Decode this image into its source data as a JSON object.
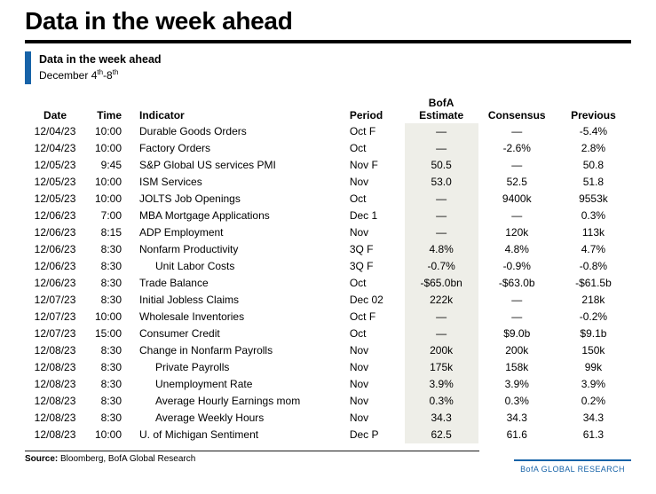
{
  "page": {
    "title": "Data in the week ahead"
  },
  "subheader": {
    "title": "Data in the week ahead",
    "date_prefix": "December 4",
    "date_sup1": "th",
    "date_mid": "-8",
    "date_sup2": "th"
  },
  "table": {
    "headers": {
      "date": "Date",
      "time": "Time",
      "indicator": "Indicator",
      "period": "Period",
      "bofa_line1": "BofA",
      "bofa_line2": "Estimate",
      "consensus": "Consensus",
      "previous": "Previous"
    },
    "rows": [
      {
        "date": "12/04/23",
        "time": "10:00",
        "indicator": "Durable Goods Orders",
        "indent": false,
        "period": "Oct F",
        "bofa": "—",
        "consensus": "—",
        "previous": "-5.4%"
      },
      {
        "date": "12/04/23",
        "time": "10:00",
        "indicator": "Factory Orders",
        "indent": false,
        "period": "Oct",
        "bofa": "—",
        "consensus": "-2.6%",
        "previous": "2.8%"
      },
      {
        "date": "12/05/23",
        "time": "9:45",
        "indicator": "S&P Global US services PMI",
        "indent": false,
        "period": "Nov F",
        "bofa": "50.5",
        "consensus": "—",
        "previous": "50.8"
      },
      {
        "date": "12/05/23",
        "time": "10:00",
        "indicator": "ISM Services",
        "indent": false,
        "period": "Nov",
        "bofa": "53.0",
        "consensus": "52.5",
        "previous": "51.8"
      },
      {
        "date": "12/05/23",
        "time": "10:00",
        "indicator": "JOLTS Job Openings",
        "indent": false,
        "period": "Oct",
        "bofa": "—",
        "consensus": "9400k",
        "previous": "9553k"
      },
      {
        "date": "12/06/23",
        "time": "7:00",
        "indicator": "MBA Mortgage Applications",
        "indent": false,
        "period": "Dec 1",
        "bofa": "—",
        "consensus": "—",
        "previous": "0.3%"
      },
      {
        "date": "12/06/23",
        "time": "8:15",
        "indicator": "ADP Employment",
        "indent": false,
        "period": "Nov",
        "bofa": "—",
        "consensus": "120k",
        "previous": "113k"
      },
      {
        "date": "12/06/23",
        "time": "8:30",
        "indicator": "Nonfarm Productivity",
        "indent": false,
        "period": "3Q F",
        "bofa": "4.8%",
        "consensus": "4.8%",
        "previous": "4.7%"
      },
      {
        "date": "12/06/23",
        "time": "8:30",
        "indicator": "Unit Labor Costs",
        "indent": true,
        "period": "3Q F",
        "bofa": "-0.7%",
        "consensus": "-0.9%",
        "previous": "-0.8%"
      },
      {
        "date": "12/06/23",
        "time": "8:30",
        "indicator": "Trade Balance",
        "indent": false,
        "period": "Oct",
        "bofa": "-$65.0bn",
        "consensus": "-$63.0b",
        "previous": "-$61.5b"
      },
      {
        "date": "12/07/23",
        "time": "8:30",
        "indicator": "Initial Jobless Claims",
        "indent": false,
        "period": "Dec 02",
        "bofa": "222k",
        "consensus": "—",
        "previous": "218k"
      },
      {
        "date": "12/07/23",
        "time": "10:00",
        "indicator": "Wholesale Inventories",
        "indent": false,
        "period": "Oct F",
        "bofa": "—",
        "consensus": "—",
        "previous": "-0.2%"
      },
      {
        "date": "12/07/23",
        "time": "15:00",
        "indicator": "Consumer Credit",
        "indent": false,
        "period": "Oct",
        "bofa": "—",
        "consensus": "$9.0b",
        "previous": "$9.1b"
      },
      {
        "date": "12/08/23",
        "time": "8:30",
        "indicator": "Change in Nonfarm Payrolls",
        "indent": false,
        "period": "Nov",
        "bofa": "200k",
        "consensus": "200k",
        "previous": "150k"
      },
      {
        "date": "12/08/23",
        "time": "8:30",
        "indicator": "Private Payrolls",
        "indent": true,
        "period": "Nov",
        "bofa": "175k",
        "consensus": "158k",
        "previous": "99k"
      },
      {
        "date": "12/08/23",
        "time": "8:30",
        "indicator": "Unemployment Rate",
        "indent": true,
        "period": "Nov",
        "bofa": "3.9%",
        "consensus": "3.9%",
        "previous": "3.9%"
      },
      {
        "date": "12/08/23",
        "time": "8:30",
        "indicator": "Average Hourly Earnings mom",
        "indent": true,
        "period": "Nov",
        "bofa": "0.3%",
        "consensus": "0.3%",
        "previous": "0.2%"
      },
      {
        "date": "12/08/23",
        "time": "8:30",
        "indicator": "Average Weekly Hours",
        "indent": true,
        "period": "Nov",
        "bofa": "34.3",
        "consensus": "34.3",
        "previous": "34.3"
      },
      {
        "date": "12/08/23",
        "time": "10:00",
        "indicator": "U. of Michigan Sentiment",
        "indent": false,
        "period": "Dec P",
        "bofa": "62.5",
        "consensus": "61.6",
        "previous": "61.3"
      }
    ]
  },
  "footer": {
    "source_label": "Source:",
    "source_text": "Bloomberg, BofA Global Research",
    "brand": "BofA GLOBAL RESEARCH"
  },
  "colors": {
    "accent_blue": "#1763a8",
    "brand_blue": "#1763a8",
    "estimate_shade": "#eeeee8"
  }
}
